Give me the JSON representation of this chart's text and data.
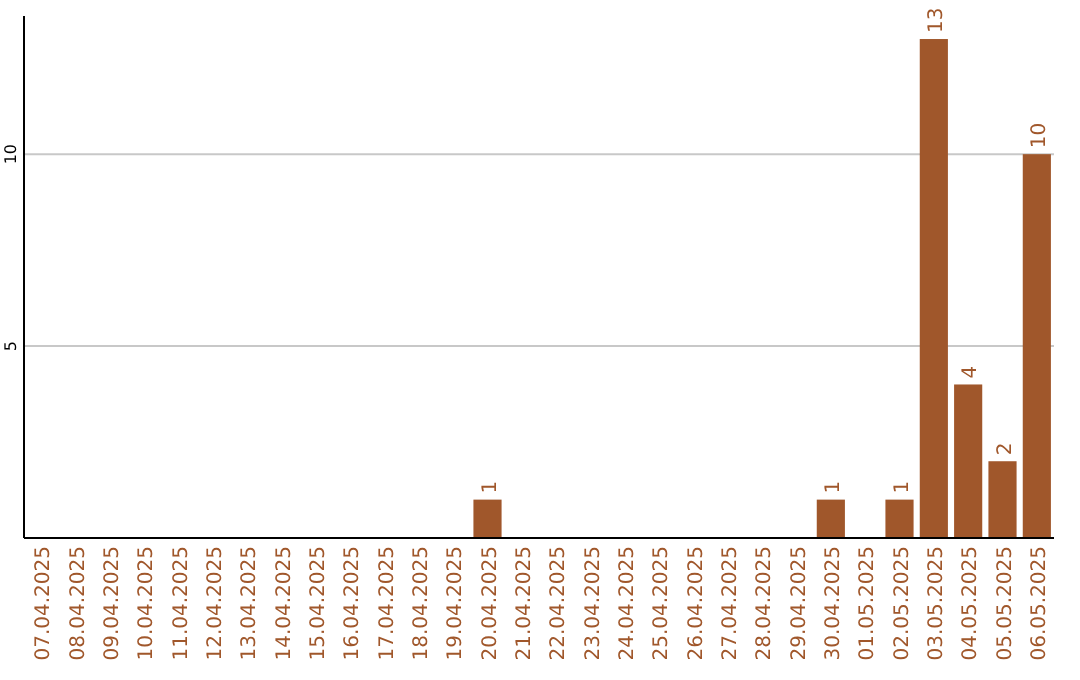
{
  "chart_data": {
    "type": "bar",
    "categories": [
      "07.04.2025",
      "08.04.2025",
      "09.04.2025",
      "10.04.2025",
      "11.04.2025",
      "12.04.2025",
      "13.04.2025",
      "14.04.2025",
      "15.04.2025",
      "16.04.2025",
      "17.04.2025",
      "18.04.2025",
      "19.04.2025",
      "20.04.2025",
      "21.04.2025",
      "22.04.2025",
      "23.04.2025",
      "24.04.2025",
      "25.04.2025",
      "26.04.2025",
      "27.04.2025",
      "28.04.2025",
      "29.04.2025",
      "30.04.2025",
      "01.05.2025",
      "02.05.2025",
      "03.05.2025",
      "04.05.2025",
      "05.05.2025",
      "06.05.2025"
    ],
    "values": [
      0,
      0,
      0,
      0,
      0,
      0,
      0,
      0,
      0,
      0,
      0,
      0,
      0,
      1,
      0,
      0,
      0,
      0,
      0,
      0,
      0,
      0,
      0,
      1,
      0,
      1,
      13,
      4,
      2,
      10
    ],
    "value_labels": [
      null,
      null,
      null,
      null,
      null,
      null,
      null,
      null,
      null,
      null,
      null,
      null,
      null,
      "1",
      null,
      null,
      null,
      null,
      null,
      null,
      null,
      null,
      null,
      "1",
      null,
      "1",
      "13",
      "4",
      "2",
      "10"
    ],
    "color": "#a0572b",
    "ylim": [
      0,
      13.6
    ],
    "yticks": [
      5,
      10
    ],
    "grid": "y"
  }
}
